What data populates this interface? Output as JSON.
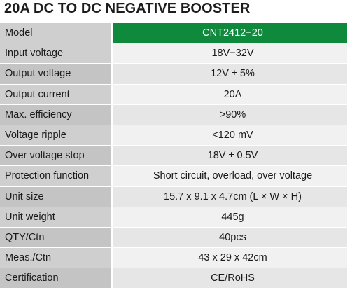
{
  "title": "20A DC TO DC NEGATIVE BOOSTER",
  "colors": {
    "header_accent": "#0f8a3d",
    "label_bg": "#cfcfcf",
    "value_bg": "#f1f1f1"
  },
  "table": {
    "rows": [
      {
        "label": "Model",
        "value": "CNT2412−20"
      },
      {
        "label": "Input voltage",
        "value": "18V−32V"
      },
      {
        "label": "Output voltage",
        "value": "12V ± 5%"
      },
      {
        "label": "Output current",
        "value": "20A"
      },
      {
        "label": "Max. efficiency",
        "value": ">90%"
      },
      {
        "label": "Voltage ripple",
        "value": "<120 mV"
      },
      {
        "label": "Over voltage stop",
        "value": "18V ± 0.5V"
      },
      {
        "label": "Protection function",
        "value": "Short circuit, overload, over voltage"
      },
      {
        "label": "Unit size",
        "value": "15.7 x 9.1 x 4.7cm (L × W × H)"
      },
      {
        "label": "Unit weight",
        "value": "445g"
      },
      {
        "label": "QTY/Ctn",
        "value": "40pcs"
      },
      {
        "label": "Meas./Ctn",
        "value": "43 x 29 x 42cm"
      },
      {
        "label": "Certification",
        "value": "CE/RoHS"
      }
    ]
  }
}
